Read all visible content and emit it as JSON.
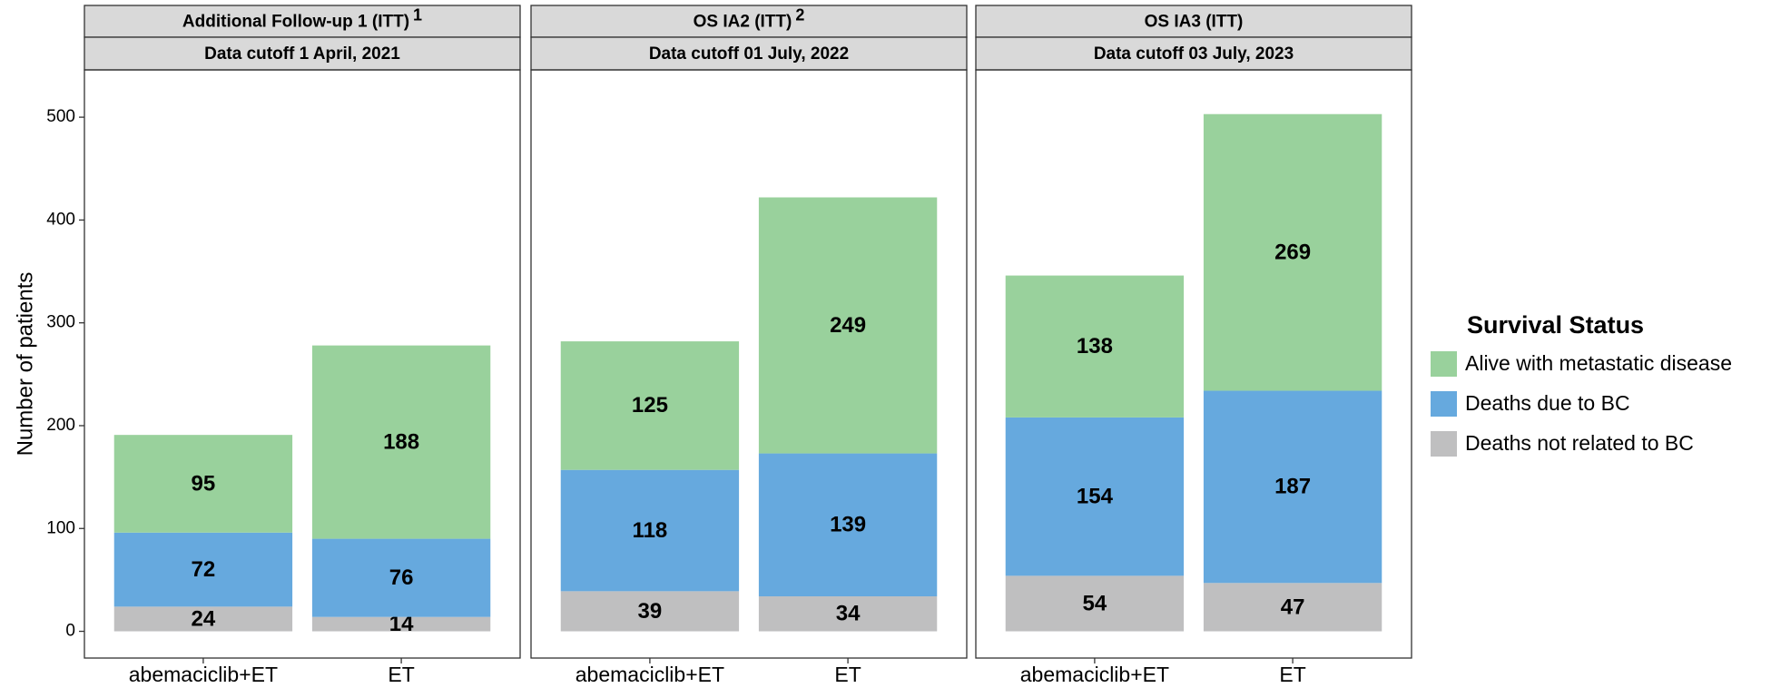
{
  "chart_data": [
    {
      "type": "stacked_bar",
      "title": "Additional Follow-up 1 (ITT)",
      "title_note": "1",
      "subtitle": "Data cutoff 1 April, 2021",
      "ylabel": "Number of patients",
      "legend_title": "Survival Status",
      "legend": "right",
      "categories": [
        "abemaciclib+ET",
        "ET"
      ],
      "series": [
        {
          "name": "Deaths not related to BC",
          "color": "#bfbfc0",
          "values": [
            24,
            14
          ]
        },
        {
          "name": "Deaths due to BC",
          "color": "#66a9de",
          "values": [
            72,
            76
          ]
        },
        {
          "name": "Alive with metastatic disease",
          "color": "#99d19c",
          "values": [
            95,
            188
          ]
        }
      ],
      "ylim": [
        -26,
        546
      ],
      "yticks": [
        0,
        100,
        200,
        300,
        400,
        500
      ]
    },
    {
      "type": "stacked_bar",
      "title": "OS IA2 (ITT)",
      "title_note": "2",
      "subtitle": "Data cutoff 01 July, 2022",
      "categories": [
        "abemaciclib+ET",
        "ET"
      ],
      "series": [
        {
          "name": "Deaths not related to BC",
          "color": "#bfbfc0",
          "values": [
            39,
            34
          ]
        },
        {
          "name": "Deaths due to BC",
          "color": "#66a9de",
          "values": [
            118,
            139
          ]
        },
        {
          "name": "Alive with metastatic disease",
          "color": "#99d19c",
          "values": [
            125,
            249
          ]
        }
      ],
      "ylim": [
        -26,
        546
      ],
      "yticks": [
        0,
        100,
        200,
        300,
        400,
        500
      ]
    },
    {
      "type": "stacked_bar",
      "title": "OS IA3 (ITT)",
      "subtitle": "Data cutoff 03 July, 2023",
      "categories": [
        "abemaciclib+ET",
        "ET"
      ],
      "series": [
        {
          "name": "Deaths not related to BC",
          "color": "#bfbfc0",
          "values": [
            54,
            47
          ]
        },
        {
          "name": "Deaths due to BC",
          "color": "#66a9de",
          "values": [
            154,
            187
          ]
        },
        {
          "name": "Alive with metastatic disease",
          "color": "#99d19c",
          "values": [
            138,
            269
          ]
        }
      ],
      "ylim": [
        -26,
        546
      ],
      "yticks": [
        0,
        100,
        200,
        300,
        400,
        500
      ]
    }
  ]
}
